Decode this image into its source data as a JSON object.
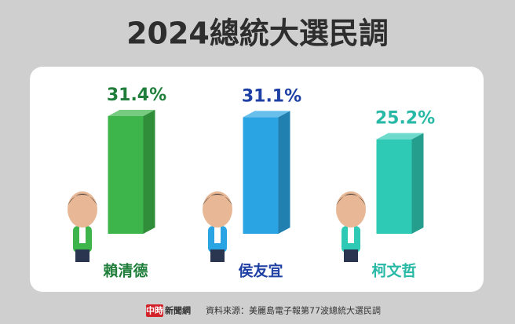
{
  "chart_data": {
    "type": "bar3d",
    "title": "2024總統大選民調",
    "categories": [
      "賴清德",
      "侯友宜",
      "柯文哲"
    ],
    "values": [
      31.4,
      31.1,
      25.2
    ],
    "value_labels": [
      "31.4%",
      "31.1%",
      "25.2%"
    ],
    "colors": [
      "#3db54a",
      "#2aa4e2",
      "#2fcab6"
    ],
    "label_colors": [
      "#1f7f3a",
      "#1e3fa3",
      "#27b9a6"
    ],
    "source": "資料來源：美麗島電子報第77波總統大選民調",
    "logo_mark": "中時",
    "logo_text": "新聞網"
  }
}
